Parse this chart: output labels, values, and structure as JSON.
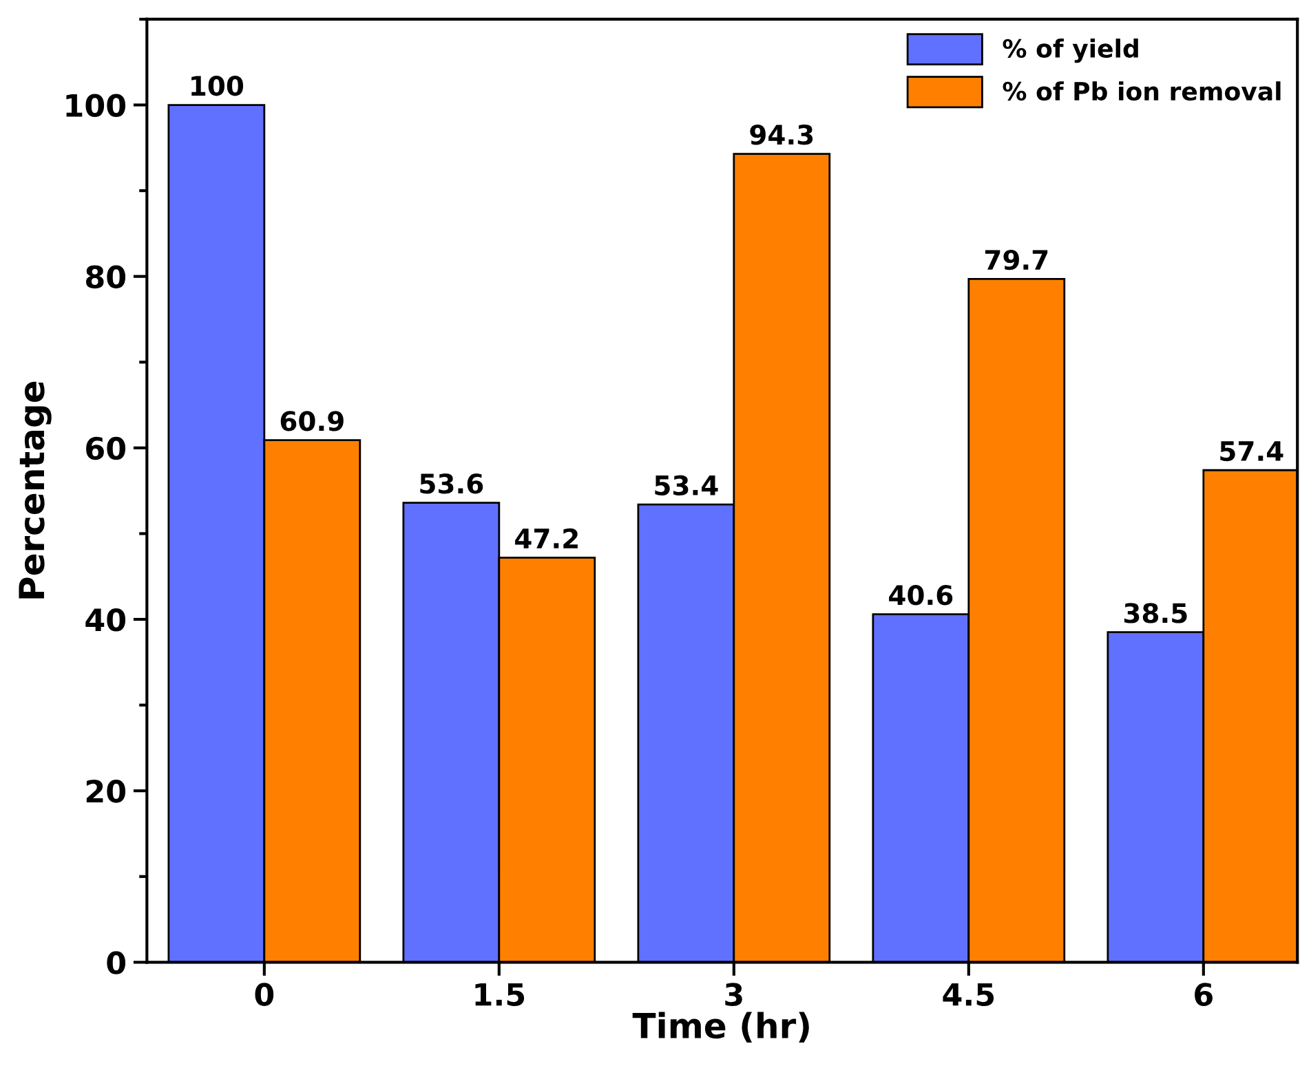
{
  "chart_data": {
    "type": "bar",
    "xlabel": "Time (hr)",
    "ylabel": "Percentage",
    "categories": [
      "0",
      "1.5",
      "3",
      "4.5",
      "6"
    ],
    "series": [
      {
        "name": "% of yield",
        "color": "#6070ff",
        "values": [
          100,
          53.6,
          53.4,
          40.6,
          38.5
        ]
      },
      {
        "name": "% of Pb ion removal",
        "color": "#ff8000",
        "values": [
          60.9,
          47.2,
          94.3,
          79.7,
          57.4
        ]
      }
    ],
    "ylim": [
      0,
      110
    ],
    "yticks": [
      0,
      20,
      40,
      60,
      80,
      100
    ],
    "data_labels": true,
    "legend": "top right",
    "grid": false
  }
}
